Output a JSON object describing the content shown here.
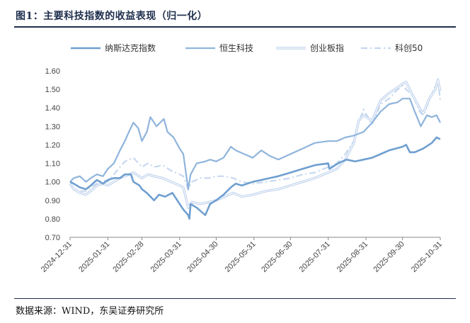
{
  "figure": {
    "title": "图1：主要科技指数的收益表现（归一化）",
    "source": "数据来源：WIND，东吴证券研究所"
  },
  "chart_data": {
    "type": "line",
    "title": "",
    "xlabel": "",
    "ylabel": "",
    "ylim": [
      0.7,
      1.6
    ],
    "yticks": [
      "0.70",
      "0.80",
      "0.90",
      "1.00",
      "1.10",
      "1.20",
      "1.30",
      "1.40",
      "1.50",
      "1.60"
    ],
    "xticks": [
      "2024-12-31",
      "2025-01-31",
      "2025-02-28",
      "2025-03-31",
      "2025-04-30",
      "2025-05-31",
      "2025-06-30",
      "2025-07-31",
      "2025-08-31",
      "2025-09-30",
      "2025-10-31"
    ],
    "xlim": [
      "2024-12-31",
      "2025-10-31"
    ],
    "grid": false,
    "legend": "top",
    "series": [
      {
        "name": "纳斯达克指数",
        "color": "#6f9fd0",
        "style": "solid-thick",
        "points": [
          [
            "2024-12-31",
            1.0
          ],
          [
            "2025-01-03",
            0.99
          ],
          [
            "2025-01-08",
            0.97
          ],
          [
            "2025-01-13",
            0.96
          ],
          [
            "2025-01-17",
            0.98
          ],
          [
            "2025-01-22",
            1.01
          ],
          [
            "2025-01-27",
            0.99
          ],
          [
            "2025-01-31",
            1.01
          ],
          [
            "2025-02-05",
            1.02
          ],
          [
            "2025-02-10",
            1.02
          ],
          [
            "2025-02-14",
            1.04
          ],
          [
            "2025-02-19",
            1.04
          ],
          [
            "2025-02-21",
            1.0
          ],
          [
            "2025-02-26",
            0.98
          ],
          [
            "2025-02-28",
            0.96
          ],
          [
            "2025-03-04",
            0.94
          ],
          [
            "2025-03-10",
            0.9
          ],
          [
            "2025-03-14",
            0.93
          ],
          [
            "2025-03-19",
            0.92
          ],
          [
            "2025-03-25",
            0.94
          ],
          [
            "2025-03-28",
            0.91
          ],
          [
            "2025-04-03",
            0.85
          ],
          [
            "2025-04-07",
            0.82
          ],
          [
            "2025-04-08",
            0.8
          ],
          [
            "2025-04-09",
            0.88
          ],
          [
            "2025-04-14",
            0.86
          ],
          [
            "2025-04-21",
            0.82
          ],
          [
            "2025-04-25",
            0.88
          ],
          [
            "2025-04-30",
            0.9
          ],
          [
            "2025-05-06",
            0.93
          ],
          [
            "2025-05-12",
            0.97
          ],
          [
            "2025-05-16",
            0.99
          ],
          [
            "2025-05-21",
            0.98
          ],
          [
            "2025-05-30",
            1.0
          ],
          [
            "2025-06-06",
            1.01
          ],
          [
            "2025-06-13",
            1.02
          ],
          [
            "2025-06-20",
            1.03
          ],
          [
            "2025-06-30",
            1.05
          ],
          [
            "2025-07-10",
            1.07
          ],
          [
            "2025-07-20",
            1.09
          ],
          [
            "2025-07-31",
            1.1
          ],
          [
            "2025-08-01",
            1.07
          ],
          [
            "2025-08-08",
            1.1
          ],
          [
            "2025-08-15",
            1.12
          ],
          [
            "2025-08-22",
            1.11
          ],
          [
            "2025-08-29",
            1.12
          ],
          [
            "2025-09-05",
            1.13
          ],
          [
            "2025-09-12",
            1.15
          ],
          [
            "2025-09-19",
            1.17
          ],
          [
            "2025-09-30",
            1.19
          ],
          [
            "2025-10-03",
            1.2
          ],
          [
            "2025-10-06",
            1.16
          ],
          [
            "2025-10-10",
            1.16
          ],
          [
            "2025-10-17",
            1.18
          ],
          [
            "2025-10-24",
            1.21
          ],
          [
            "2025-10-28",
            1.24
          ],
          [
            "2025-10-31",
            1.23
          ]
        ]
      },
      {
        "name": "恒生科技",
        "color": "#8fb4dc",
        "style": "solid",
        "points": [
          [
            "2024-12-31",
            1.0
          ],
          [
            "2025-01-03",
            1.02
          ],
          [
            "2025-01-08",
            1.03
          ],
          [
            "2025-01-13",
            1.0
          ],
          [
            "2025-01-17",
            1.02
          ],
          [
            "2025-01-22",
            1.04
          ],
          [
            "2025-01-27",
            1.03
          ],
          [
            "2025-01-31",
            1.07
          ],
          [
            "2025-02-05",
            1.1
          ],
          [
            "2025-02-10",
            1.17
          ],
          [
            "2025-02-14",
            1.22
          ],
          [
            "2025-02-18",
            1.28
          ],
          [
            "2025-02-21",
            1.32
          ],
          [
            "2025-02-25",
            1.29
          ],
          [
            "2025-02-28",
            1.22
          ],
          [
            "2025-03-04",
            1.27
          ],
          [
            "2025-03-07",
            1.35
          ],
          [
            "2025-03-12",
            1.3
          ],
          [
            "2025-03-18",
            1.34
          ],
          [
            "2025-03-21",
            1.27
          ],
          [
            "2025-03-26",
            1.24
          ],
          [
            "2025-03-31",
            1.18
          ],
          [
            "2025-04-03",
            1.15
          ],
          [
            "2025-04-07",
            0.96
          ],
          [
            "2025-04-09",
            1.04
          ],
          [
            "2025-04-14",
            1.1
          ],
          [
            "2025-04-21",
            1.11
          ],
          [
            "2025-04-25",
            1.12
          ],
          [
            "2025-04-30",
            1.11
          ],
          [
            "2025-05-06",
            1.13
          ],
          [
            "2025-05-12",
            1.19
          ],
          [
            "2025-05-16",
            1.17
          ],
          [
            "2025-05-23",
            1.15
          ],
          [
            "2025-05-30",
            1.13
          ],
          [
            "2025-06-06",
            1.17
          ],
          [
            "2025-06-13",
            1.14
          ],
          [
            "2025-06-20",
            1.12
          ],
          [
            "2025-06-30",
            1.15
          ],
          [
            "2025-07-10",
            1.18
          ],
          [
            "2025-07-20",
            1.21
          ],
          [
            "2025-07-31",
            1.22
          ],
          [
            "2025-08-07",
            1.22
          ],
          [
            "2025-08-14",
            1.24
          ],
          [
            "2025-08-21",
            1.25
          ],
          [
            "2025-08-29",
            1.27
          ],
          [
            "2025-09-05",
            1.32
          ],
          [
            "2025-09-12",
            1.38
          ],
          [
            "2025-09-19",
            1.42
          ],
          [
            "2025-09-26",
            1.43
          ],
          [
            "2025-09-30",
            1.45
          ],
          [
            "2025-10-06",
            1.45
          ],
          [
            "2025-10-10",
            1.38
          ],
          [
            "2025-10-15",
            1.3
          ],
          [
            "2025-10-20",
            1.36
          ],
          [
            "2025-10-24",
            1.35
          ],
          [
            "2025-10-28",
            1.36
          ],
          [
            "2025-10-31",
            1.32
          ]
        ]
      },
      {
        "name": "创业板指",
        "color": "#b8cdeb",
        "style": "double",
        "points": [
          [
            "2024-12-31",
            0.99
          ],
          [
            "2025-01-03",
            0.96
          ],
          [
            "2025-01-08",
            0.94
          ],
          [
            "2025-01-13",
            0.93
          ],
          [
            "2025-01-17",
            0.95
          ],
          [
            "2025-01-22",
            0.98
          ],
          [
            "2025-01-27",
            0.99
          ],
          [
            "2025-01-31",
            0.98
          ],
          [
            "2025-02-05",
            1.0
          ],
          [
            "2025-02-10",
            1.02
          ],
          [
            "2025-02-14",
            1.03
          ],
          [
            "2025-02-21",
            1.05
          ],
          [
            "2025-02-28",
            1.02
          ],
          [
            "2025-03-05",
            1.04
          ],
          [
            "2025-03-10",
            1.03
          ],
          [
            "2025-03-17",
            1.02
          ],
          [
            "2025-03-24",
            1.0
          ],
          [
            "2025-03-31",
            0.98
          ],
          [
            "2025-04-03",
            0.97
          ],
          [
            "2025-04-07",
            0.86
          ],
          [
            "2025-04-10",
            0.89
          ],
          [
            "2025-04-17",
            0.88
          ],
          [
            "2025-04-24",
            0.89
          ],
          [
            "2025-04-30",
            0.9
          ],
          [
            "2025-05-07",
            0.92
          ],
          [
            "2025-05-14",
            0.94
          ],
          [
            "2025-05-21",
            0.92
          ],
          [
            "2025-05-30",
            0.93
          ],
          [
            "2025-06-10",
            0.95
          ],
          [
            "2025-06-20",
            0.96
          ],
          [
            "2025-06-30",
            0.98
          ],
          [
            "2025-07-10",
            1.0
          ],
          [
            "2025-07-20",
            1.02
          ],
          [
            "2025-07-31",
            1.05
          ],
          [
            "2025-08-07",
            1.07
          ],
          [
            "2025-08-14",
            1.12
          ],
          [
            "2025-08-21",
            1.21
          ],
          [
            "2025-08-25",
            1.33
          ],
          [
            "2025-08-29",
            1.36
          ],
          [
            "2025-09-05",
            1.33
          ],
          [
            "2025-09-12",
            1.44
          ],
          [
            "2025-09-19",
            1.48
          ],
          [
            "2025-09-26",
            1.51
          ],
          [
            "2025-09-30",
            1.53
          ],
          [
            "2025-10-03",
            1.54
          ],
          [
            "2025-10-09",
            1.46
          ],
          [
            "2025-10-14",
            1.4
          ],
          [
            "2025-10-17",
            1.37
          ],
          [
            "2025-10-22",
            1.45
          ],
          [
            "2025-10-27",
            1.5
          ],
          [
            "2025-10-29",
            1.55
          ],
          [
            "2025-10-31",
            1.49
          ]
        ]
      },
      {
        "name": "科创50",
        "color": "#c7d8ef",
        "style": "dash-dot",
        "points": [
          [
            "2024-12-31",
            0.99
          ],
          [
            "2025-01-03",
            0.96
          ],
          [
            "2025-01-08",
            0.95
          ],
          [
            "2025-01-13",
            0.95
          ],
          [
            "2025-01-17",
            0.97
          ],
          [
            "2025-01-22",
            0.99
          ],
          [
            "2025-01-27",
            1.01
          ],
          [
            "2025-01-31",
            1.0
          ],
          [
            "2025-02-05",
            1.04
          ],
          [
            "2025-02-10",
            1.08
          ],
          [
            "2025-02-14",
            1.11
          ],
          [
            "2025-02-21",
            1.13
          ],
          [
            "2025-02-28",
            1.08
          ],
          [
            "2025-03-05",
            1.1
          ],
          [
            "2025-03-10",
            1.08
          ],
          [
            "2025-03-17",
            1.09
          ],
          [
            "2025-03-24",
            1.06
          ],
          [
            "2025-03-31",
            1.04
          ],
          [
            "2025-04-03",
            1.03
          ],
          [
            "2025-04-07",
            0.96
          ],
          [
            "2025-04-10",
            1.0
          ],
          [
            "2025-04-17",
            1.02
          ],
          [
            "2025-04-24",
            1.02
          ],
          [
            "2025-04-30",
            1.03
          ],
          [
            "2025-05-07",
            1.03
          ],
          [
            "2025-05-14",
            1.02
          ],
          [
            "2025-05-21",
            1.0
          ],
          [
            "2025-05-30",
            0.99
          ],
          [
            "2025-06-10",
            1.0
          ],
          [
            "2025-06-20",
            1.01
          ],
          [
            "2025-06-30",
            1.02
          ],
          [
            "2025-07-10",
            1.04
          ],
          [
            "2025-07-20",
            1.05
          ],
          [
            "2025-07-31",
            1.08
          ],
          [
            "2025-08-07",
            1.1
          ],
          [
            "2025-08-14",
            1.15
          ],
          [
            "2025-08-21",
            1.22
          ],
          [
            "2025-08-25",
            1.32
          ],
          [
            "2025-08-29",
            1.39
          ],
          [
            "2025-09-05",
            1.31
          ],
          [
            "2025-09-12",
            1.42
          ],
          [
            "2025-09-19",
            1.45
          ],
          [
            "2025-09-26",
            1.5
          ],
          [
            "2025-09-30",
            1.52
          ],
          [
            "2025-10-03",
            1.5
          ],
          [
            "2025-10-09",
            1.46
          ],
          [
            "2025-10-14",
            1.38
          ],
          [
            "2025-10-17",
            1.36
          ],
          [
            "2025-10-22",
            1.44
          ],
          [
            "2025-10-27",
            1.52
          ],
          [
            "2025-10-29",
            1.55
          ],
          [
            "2025-10-31",
            1.44
          ]
        ]
      }
    ]
  }
}
